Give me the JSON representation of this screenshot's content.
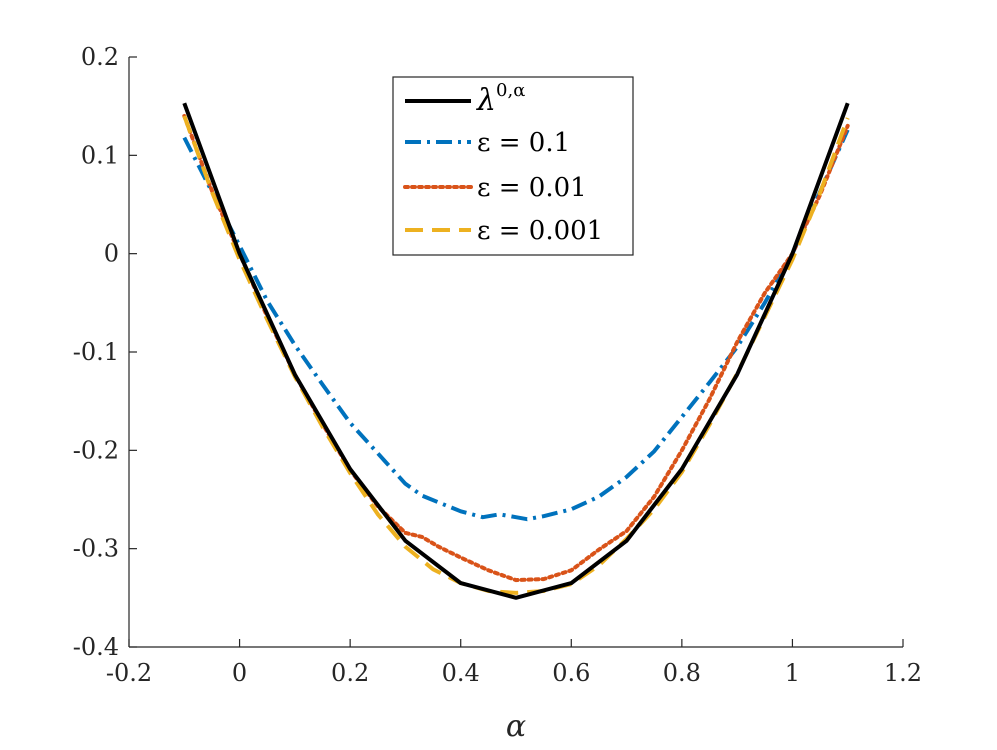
{
  "chart_data": {
    "type": "line",
    "title": "",
    "xlabel": "α",
    "ylabel": "",
    "xlim": [
      -0.2,
      1.2
    ],
    "ylim": [
      -0.4,
      0.2
    ],
    "xticks": [
      -0.2,
      0,
      0.2,
      0.4,
      0.6,
      0.8,
      1,
      1.2
    ],
    "xtick_labels": [
      "-0.2",
      "0",
      "0.2",
      "0.4",
      "0.6",
      "0.8",
      "1",
      "1.2"
    ],
    "yticks": [
      -0.4,
      -0.3,
      -0.2,
      -0.1,
      0,
      0.1,
      0.2
    ],
    "ytick_labels": [
      "-0.4",
      "-0.3",
      "-0.2",
      "-0.1",
      "0",
      "0.1",
      "0.2"
    ],
    "grid": false,
    "legend_position": "top-center",
    "series": [
      {
        "name": "λ^{0,α}",
        "legend_main": "λ",
        "legend_sup": "0,α",
        "color": "#000000",
        "style": "solid",
        "x": [
          -0.1,
          0,
          0.1,
          0.2,
          0.3,
          0.4,
          0.5,
          0.6,
          0.7,
          0.8,
          0.9,
          1.0,
          1.1
        ],
        "y": [
          0.153,
          0.0,
          -0.123,
          -0.219,
          -0.292,
          -0.335,
          -0.35,
          -0.335,
          -0.292,
          -0.219,
          -0.123,
          0.0,
          0.153
        ]
      },
      {
        "name": "ε = 0.1",
        "legend_label": "ε = 0.1",
        "color": "#0072BD",
        "style": "dashdot",
        "x": [
          -0.1,
          -0.05,
          0,
          0.05,
          0.1,
          0.15,
          0.2,
          0.25,
          0.3,
          0.33,
          0.36,
          0.4,
          0.44,
          0.47,
          0.5,
          0.52,
          0.55,
          0.6,
          0.65,
          0.7,
          0.75,
          0.8,
          0.85,
          0.9,
          0.95,
          1.0,
          1.05,
          1.1
        ],
        "y": [
          0.118,
          0.063,
          0.008,
          -0.048,
          -0.093,
          -0.133,
          -0.172,
          -0.203,
          -0.234,
          -0.246,
          -0.253,
          -0.262,
          -0.268,
          -0.265,
          -0.268,
          -0.27,
          -0.267,
          -0.26,
          -0.247,
          -0.227,
          -0.201,
          -0.166,
          -0.131,
          -0.095,
          -0.05,
          0.0,
          0.063,
          0.126
        ]
      },
      {
        "name": "ε = 0.01",
        "legend_label": "ε = 0.01",
        "color": "#D95319",
        "style": "dotted",
        "x": [
          -0.1,
          -0.05,
          0,
          0.05,
          0.1,
          0.15,
          0.2,
          0.25,
          0.3,
          0.33,
          0.36,
          0.4,
          0.45,
          0.5,
          0.55,
          0.6,
          0.65,
          0.7,
          0.75,
          0.8,
          0.85,
          0.9,
          0.95,
          1.0,
          1.05,
          1.1
        ],
        "y": [
          0.14,
          0.064,
          0.0,
          -0.064,
          -0.123,
          -0.173,
          -0.22,
          -0.257,
          -0.284,
          -0.288,
          -0.298,
          -0.309,
          -0.322,
          -0.332,
          -0.331,
          -0.322,
          -0.301,
          -0.282,
          -0.247,
          -0.2,
          -0.148,
          -0.09,
          -0.04,
          0.0,
          0.06,
          0.13
        ]
      },
      {
        "name": "ε = 0.001",
        "legend_label": "ε = 0.001",
        "color": "#EDB120",
        "style": "dashed",
        "x": [
          -0.1,
          -0.05,
          0,
          0.05,
          0.1,
          0.15,
          0.2,
          0.25,
          0.3,
          0.35,
          0.4,
          0.45,
          0.5,
          0.55,
          0.6,
          0.65,
          0.7,
          0.75,
          0.8,
          0.85,
          0.9,
          0.95,
          1.0,
          1.05,
          1.1
        ],
        "y": [
          0.14,
          0.063,
          -0.006,
          -0.067,
          -0.125,
          -0.176,
          -0.223,
          -0.265,
          -0.298,
          -0.321,
          -0.335,
          -0.343,
          -0.345,
          -0.343,
          -0.336,
          -0.317,
          -0.29,
          -0.26,
          -0.222,
          -0.174,
          -0.122,
          -0.064,
          -0.006,
          0.062,
          0.138
        ]
      }
    ]
  }
}
